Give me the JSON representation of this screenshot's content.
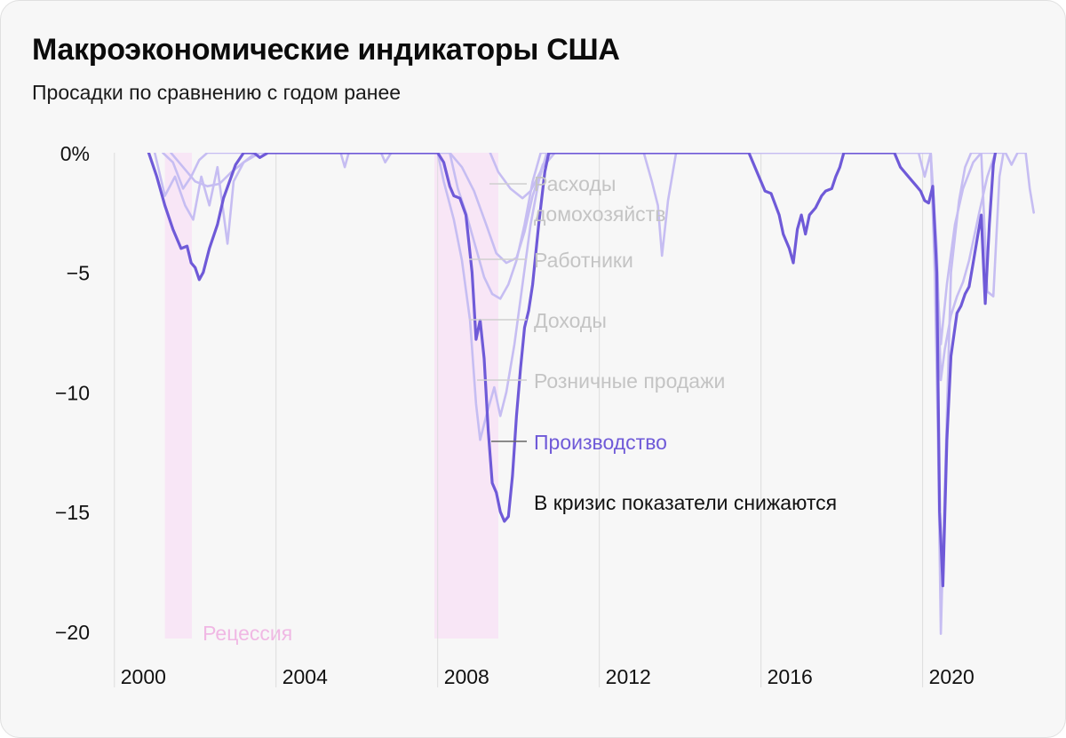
{
  "header": {
    "title": "Макроэкономические индикаторы США",
    "subtitle": "Просадки по сравнению с годом ранее"
  },
  "colors": {
    "background": "#f7f7f7",
    "highlight": "#6f5ad8",
    "muted": "#c6bdf2",
    "muted_label": "#c4c4c4",
    "recession": "#f8e6f6",
    "recession_label": "#f0b8e4",
    "grid": "#dddddd"
  },
  "chart_data": {
    "type": "line",
    "xlim": [
      1999.5,
      2022.8
    ],
    "ylim": [
      -20.3,
      0
    ],
    "x_ticks": [
      {
        "value": 2000,
        "label": "2000"
      },
      {
        "value": 2004,
        "label": "2004"
      },
      {
        "value": 2008,
        "label": "2008"
      },
      {
        "value": 2012,
        "label": "2012"
      },
      {
        "value": 2016,
        "label": "2016"
      },
      {
        "value": 2020,
        "label": "2020"
      }
    ],
    "y_ticks": [
      {
        "value": 0,
        "label": "0%"
      },
      {
        "value": -5,
        "label": "−5"
      },
      {
        "value": -10,
        "label": "−10"
      },
      {
        "value": -15,
        "label": "−15"
      },
      {
        "value": -20,
        "label": "−20"
      }
    ],
    "recessions": [
      {
        "start": 2001.25,
        "end": 2001.92
      },
      {
        "start": 2007.92,
        "end": 2009.5
      }
    ],
    "recession_label": "Рецессия",
    "annotation": "В кризис показатели снижаются",
    "series": [
      {
        "name": "Расходы домохозяйств",
        "highlight": false,
        "points": [
          [
            2009.3,
            0
          ],
          [
            2009.5,
            -0.8
          ],
          [
            2009.8,
            -1.5
          ],
          [
            2010.1,
            -1.9
          ],
          [
            2010.3,
            -1.6
          ],
          [
            2010.6,
            -0.6
          ],
          [
            2010.9,
            0
          ]
        ]
      },
      {
        "name": "Работники",
        "highlight": false,
        "points": [
          [
            2001.4,
            0
          ],
          [
            2001.7,
            -0.6
          ],
          [
            2002.0,
            -1.2
          ],
          [
            2002.3,
            -1.4
          ],
          [
            2002.6,
            -1.3
          ],
          [
            2002.9,
            -0.8
          ],
          [
            2003.2,
            -0.4
          ],
          [
            2003.6,
            0
          ],
          [
            2008.3,
            0
          ],
          [
            2008.6,
            -0.6
          ],
          [
            2008.9,
            -1.6
          ],
          [
            2009.2,
            -3.0
          ],
          [
            2009.45,
            -4.2
          ],
          [
            2009.7,
            -4.6
          ],
          [
            2009.95,
            -4.4
          ],
          [
            2010.15,
            -3.3
          ],
          [
            2010.35,
            -1.8
          ],
          [
            2010.6,
            -0.5
          ],
          [
            2010.8,
            0
          ],
          [
            2020.2,
            0
          ],
          [
            2020.35,
            -4.0
          ],
          [
            2020.45,
            -9.5
          ],
          [
            2020.55,
            -8.2
          ],
          [
            2020.7,
            -6.8
          ],
          [
            2020.85,
            -6.0
          ],
          [
            2021.0,
            -5.4
          ],
          [
            2021.15,
            -4.5
          ],
          [
            2021.4,
            -2.5
          ],
          [
            2021.6,
            -1.0
          ],
          [
            2021.8,
            0
          ]
        ]
      },
      {
        "name": "Доходы",
        "highlight": false,
        "points": [
          [
            2001.2,
            0
          ],
          [
            2001.45,
            -0.4
          ],
          [
            2001.7,
            -1.5
          ],
          [
            2001.9,
            -1.0
          ],
          [
            2002.1,
            -0.3
          ],
          [
            2002.3,
            0
          ],
          [
            2008.3,
            0
          ],
          [
            2008.5,
            -1.5
          ],
          [
            2008.7,
            -2.5
          ],
          [
            2008.95,
            -4.0
          ],
          [
            2009.15,
            -5.2
          ],
          [
            2009.35,
            -5.9
          ],
          [
            2009.55,
            -6.1
          ],
          [
            2009.75,
            -5.5
          ],
          [
            2009.95,
            -4.5
          ],
          [
            2010.15,
            -3.0
          ],
          [
            2010.35,
            -1.2
          ],
          [
            2010.55,
            0
          ],
          [
            2020.2,
            0
          ],
          [
            2020.35,
            -5.0
          ],
          [
            2020.45,
            -8.0
          ],
          [
            2020.6,
            -5.5
          ],
          [
            2020.8,
            -3.0
          ],
          [
            2021.0,
            -1.5
          ],
          [
            2021.25,
            -0.4
          ],
          [
            2021.45,
            0
          ],
          [
            2021.6,
            -5.8
          ],
          [
            2021.75,
            -6.0
          ],
          [
            2021.9,
            -1.0
          ],
          [
            2022.0,
            0
          ]
        ]
      },
      {
        "name": "Розничные продажи",
        "highlight": false,
        "points": [
          [
            2001.0,
            0
          ],
          [
            2001.25,
            -1.8
          ],
          [
            2001.5,
            -1.0
          ],
          [
            2001.75,
            -2.2
          ],
          [
            2001.95,
            -2.8
          ],
          [
            2002.15,
            -1.0
          ],
          [
            2002.35,
            -2.2
          ],
          [
            2002.55,
            -0.6
          ],
          [
            2002.8,
            -3.8
          ],
          [
            2002.95,
            -1.2
          ],
          [
            2003.2,
            -0.4
          ],
          [
            2003.5,
            0
          ],
          [
            2005.6,
            0
          ],
          [
            2005.7,
            -0.6
          ],
          [
            2005.8,
            0
          ],
          [
            2006.6,
            0
          ],
          [
            2006.7,
            -0.4
          ],
          [
            2006.85,
            0
          ],
          [
            2008.0,
            0
          ],
          [
            2008.15,
            -1.2
          ],
          [
            2008.4,
            -2.8
          ],
          [
            2008.6,
            -4.5
          ],
          [
            2008.8,
            -7.0
          ],
          [
            2008.95,
            -10.5
          ],
          [
            2009.05,
            -12.0
          ],
          [
            2009.2,
            -11.0
          ],
          [
            2009.4,
            -9.8
          ],
          [
            2009.55,
            -11.0
          ],
          [
            2009.7,
            -10.0
          ],
          [
            2009.9,
            -8.0
          ],
          [
            2010.1,
            -5.5
          ],
          [
            2010.3,
            -3.0
          ],
          [
            2010.5,
            -1.2
          ],
          [
            2010.7,
            0
          ],
          [
            2013.1,
            0
          ],
          [
            2013.3,
            -1.2
          ],
          [
            2013.45,
            -2.2
          ],
          [
            2013.55,
            -4.3
          ],
          [
            2013.7,
            -2.0
          ],
          [
            2013.9,
            0
          ],
          [
            2019.9,
            0
          ],
          [
            2020.05,
            -1.0
          ],
          [
            2020.2,
            0
          ],
          [
            2020.3,
            -5.0
          ],
          [
            2020.38,
            -12.0
          ],
          [
            2020.45,
            -20.1
          ],
          [
            2020.55,
            -14.0
          ],
          [
            2020.7,
            -5.0
          ],
          [
            2020.9,
            -2.0
          ],
          [
            2021.05,
            -0.6
          ],
          [
            2021.2,
            0
          ],
          [
            2022.05,
            0
          ],
          [
            2022.2,
            -0.5
          ],
          [
            2022.35,
            0
          ],
          [
            2022.55,
            0
          ],
          [
            2022.65,
            -1.5
          ],
          [
            2022.75,
            -2.5
          ]
        ]
      },
      {
        "name": "Производство",
        "highlight": true,
        "points": [
          [
            2000.85,
            0
          ],
          [
            2001.05,
            -1.0
          ],
          [
            2001.25,
            -2.2
          ],
          [
            2001.45,
            -3.2
          ],
          [
            2001.65,
            -4.0
          ],
          [
            2001.8,
            -3.9
          ],
          [
            2001.9,
            -4.6
          ],
          [
            2002.0,
            -4.8
          ],
          [
            2002.1,
            -5.3
          ],
          [
            2002.2,
            -5.0
          ],
          [
            2002.35,
            -4.0
          ],
          [
            2002.55,
            -3.0
          ],
          [
            2002.7,
            -1.9
          ],
          [
            2002.85,
            -1.2
          ],
          [
            2003.0,
            -0.5
          ],
          [
            2003.2,
            0
          ],
          [
            2003.45,
            0
          ],
          [
            2003.6,
            -0.2
          ],
          [
            2003.8,
            0
          ],
          [
            2008.0,
            0
          ],
          [
            2008.15,
            -0.4
          ],
          [
            2008.3,
            -1.4
          ],
          [
            2008.4,
            -1.8
          ],
          [
            2008.55,
            -1.9
          ],
          [
            2008.7,
            -2.6
          ],
          [
            2008.85,
            -5.0
          ],
          [
            2008.95,
            -7.8
          ],
          [
            2009.05,
            -7.0
          ],
          [
            2009.15,
            -8.6
          ],
          [
            2009.25,
            -11.6
          ],
          [
            2009.35,
            -13.8
          ],
          [
            2009.45,
            -14.2
          ],
          [
            2009.55,
            -15.0
          ],
          [
            2009.65,
            -15.4
          ],
          [
            2009.75,
            -15.2
          ],
          [
            2009.85,
            -13.5
          ],
          [
            2009.95,
            -11.0
          ],
          [
            2010.05,
            -9.0
          ],
          [
            2010.15,
            -7.3
          ],
          [
            2010.25,
            -6.6
          ],
          [
            2010.35,
            -5.5
          ],
          [
            2010.5,
            -3.0
          ],
          [
            2010.65,
            -0.8
          ],
          [
            2010.75,
            0
          ],
          [
            2015.7,
            0
          ],
          [
            2015.9,
            -0.8
          ],
          [
            2016.1,
            -1.6
          ],
          [
            2016.25,
            -1.7
          ],
          [
            2016.45,
            -2.6
          ],
          [
            2016.55,
            -3.4
          ],
          [
            2016.7,
            -4.0
          ],
          [
            2016.8,
            -4.6
          ],
          [
            2016.9,
            -3.2
          ],
          [
            2017.0,
            -2.6
          ],
          [
            2017.1,
            -3.4
          ],
          [
            2017.2,
            -2.6
          ],
          [
            2017.35,
            -2.3
          ],
          [
            2017.5,
            -1.8
          ],
          [
            2017.6,
            -1.6
          ],
          [
            2017.75,
            -1.5
          ],
          [
            2017.85,
            -1.0
          ],
          [
            2017.95,
            -0.6
          ],
          [
            2018.05,
            0
          ],
          [
            2019.3,
            0
          ],
          [
            2019.45,
            -0.6
          ],
          [
            2019.6,
            -0.9
          ],
          [
            2019.75,
            -1.2
          ],
          [
            2019.85,
            -1.4
          ],
          [
            2019.95,
            -1.6
          ],
          [
            2020.05,
            -2.0
          ],
          [
            2020.15,
            -2.1
          ],
          [
            2020.25,
            -1.4
          ],
          [
            2020.35,
            -5.0
          ],
          [
            2020.42,
            -15.0
          ],
          [
            2020.5,
            -18.1
          ],
          [
            2020.6,
            -12.0
          ],
          [
            2020.7,
            -8.5
          ],
          [
            2020.85,
            -6.7
          ],
          [
            2020.95,
            -6.4
          ],
          [
            2021.05,
            -5.9
          ],
          [
            2021.15,
            -5.6
          ],
          [
            2021.25,
            -4.6
          ],
          [
            2021.35,
            -3.6
          ],
          [
            2021.45,
            -2.6
          ],
          [
            2021.55,
            -6.3
          ],
          [
            2021.65,
            -3.0
          ],
          [
            2021.75,
            -0.5
          ],
          [
            2021.8,
            0
          ]
        ]
      }
    ]
  }
}
